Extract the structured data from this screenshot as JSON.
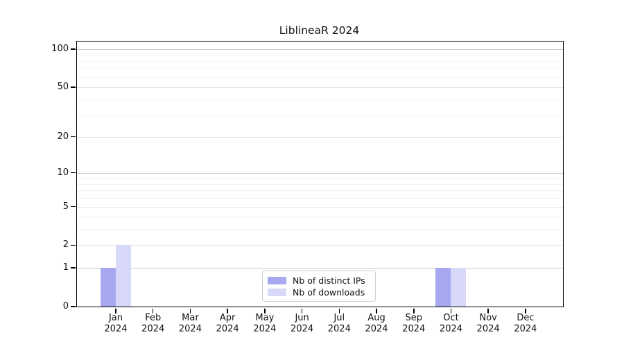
{
  "chart_data": {
    "type": "bar",
    "title": "LiblineaR 2024",
    "xlabel": "",
    "ylabel": "",
    "categories": [
      "Jan 2024",
      "Feb 2024",
      "Mar 2024",
      "Apr 2024",
      "May 2024",
      "Jun 2024",
      "Jul 2024",
      "Aug 2024",
      "Sep 2024",
      "Oct 2024",
      "Nov 2024",
      "Dec 2024"
    ],
    "series": [
      {
        "name": "Nb of distinct IPs",
        "color": "#a8a8f0",
        "values": [
          1,
          0,
          0,
          0,
          0,
          0,
          0,
          0,
          0,
          1,
          0,
          0
        ]
      },
      {
        "name": "Nb of downloads",
        "color": "#d8d8f8",
        "values": [
          2,
          0,
          0,
          0,
          0,
          0,
          0,
          0,
          0,
          1,
          0,
          0
        ]
      }
    ],
    "yscale": "log1p",
    "ylim": [
      0,
      115
    ],
    "yticks": [
      0,
      1,
      2,
      5,
      10,
      20,
      50,
      100
    ],
    "grid_major": [
      1,
      10,
      100
    ],
    "grid_mid": [
      2,
      5,
      20,
      50
    ],
    "grid_minor": [
      3,
      4,
      6,
      7,
      8,
      9,
      30,
      40,
      60,
      70,
      80,
      90
    ],
    "grid": "horizontal",
    "legend": {
      "position": "bottom-center-inside",
      "border_color": "#cccccc"
    },
    "colors": {
      "axis": "#000000",
      "grid_major": "#c8c8c8",
      "grid_minor": "#f1f1f1",
      "background": "#ffffff"
    }
  }
}
